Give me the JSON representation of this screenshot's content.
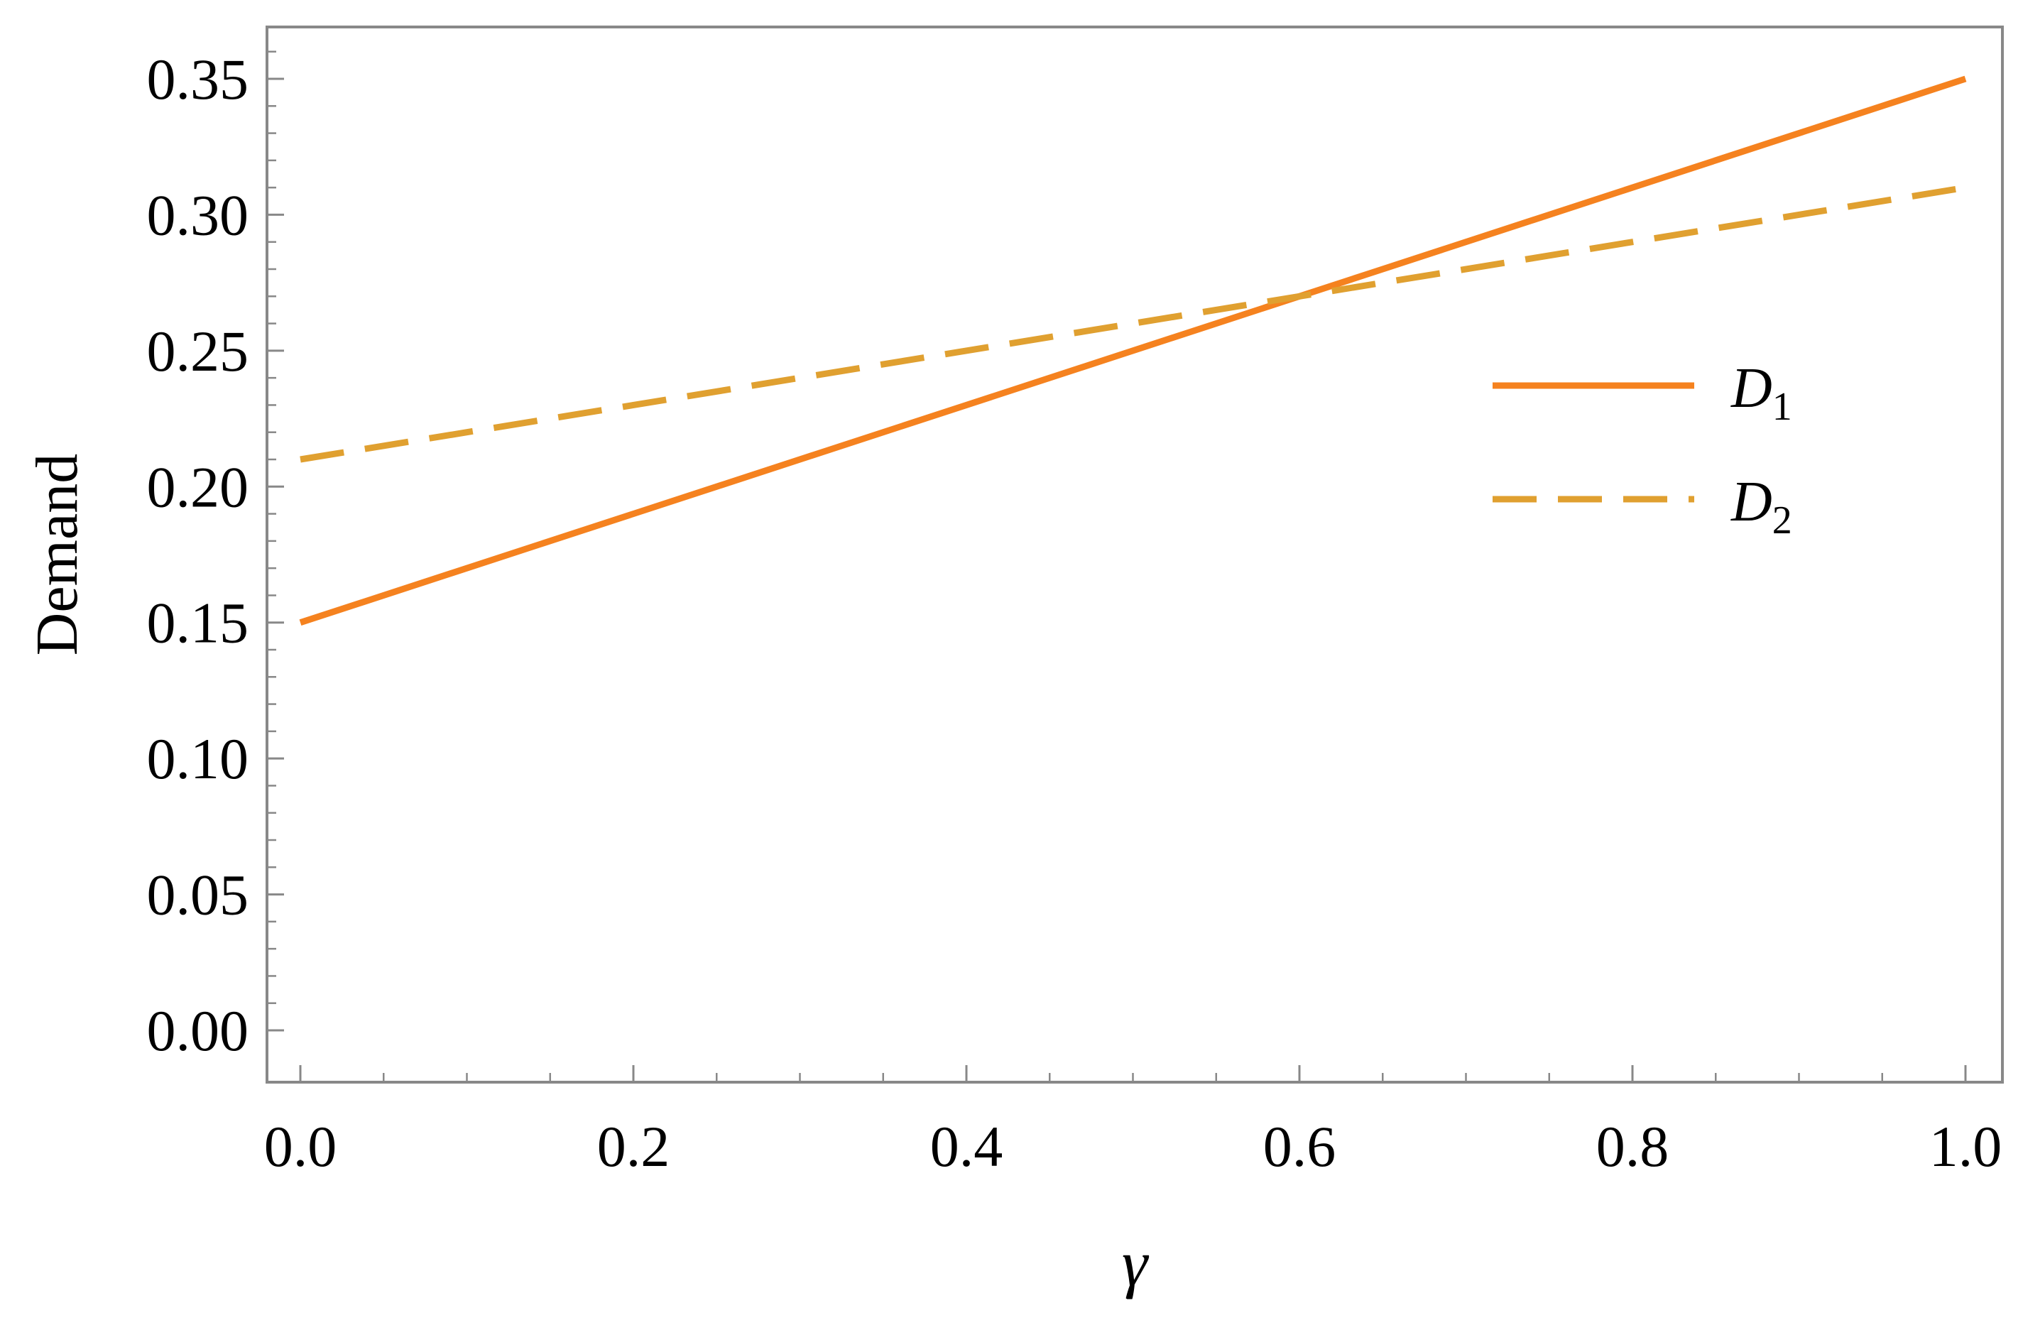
{
  "chart_data": {
    "type": "line",
    "title": "",
    "xlabel": "γ",
    "ylabel": "Demand",
    "xlim": [
      0.0,
      1.0
    ],
    "ylim": [
      0.0,
      0.35
    ],
    "grid": false,
    "legend_position": "right",
    "x_ticks": [
      "0.0",
      "0.2",
      "0.4",
      "0.6",
      "0.8",
      "1.0"
    ],
    "y_ticks": [
      "0.00",
      "0.05",
      "0.10",
      "0.15",
      "0.20",
      "0.25",
      "0.30",
      "0.35"
    ],
    "series": [
      {
        "name": "D1",
        "legend_main": "D",
        "legend_sub": "1",
        "style": "solid",
        "color": "#f5821f",
        "x": [
          0.0,
          1.0
        ],
        "y": [
          0.15,
          0.35
        ]
      },
      {
        "name": "D2",
        "legend_main": "D",
        "legend_sub": "2",
        "style": "dashed",
        "color": "#e0a030",
        "x": [
          0.0,
          1.0
        ],
        "y": [
          0.21,
          0.31
        ]
      }
    ]
  }
}
